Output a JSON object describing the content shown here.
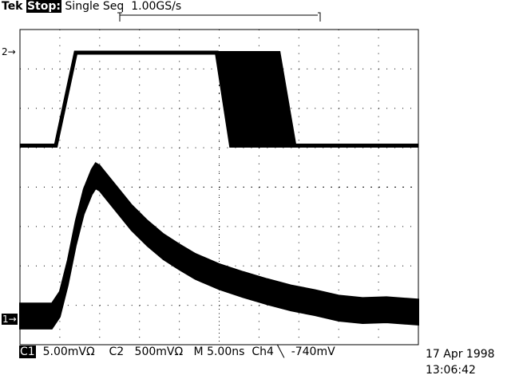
{
  "header": {
    "brand": "Tek",
    "state": "Stop:",
    "mode": "Single Seq",
    "sample_rate": "1.00GS/s"
  },
  "footer": {
    "ch1_label": "C1",
    "ch1_scale": "5.00mVΩ",
    "ch2_label": "C2",
    "ch2_scale": "500mVΩ",
    "timebase": "M 5.00ns",
    "trigger_source": "Ch4",
    "trigger_slope_icon": "falling-edge-icon",
    "trigger_level": "-740mV",
    "date": "17 Apr 1998",
    "time": "13:06:42"
  },
  "markers": {
    "ch1": "1→",
    "ch2": "2→"
  },
  "chart_data": {
    "type": "line",
    "grid": true,
    "divisions": {
      "x": 10,
      "y": 8
    },
    "x_unit": "ns",
    "xlim": [
      0,
      50
    ],
    "series": [
      {
        "name": "1",
        "unit": "mV",
        "per_div": 5,
        "band": 1.6,
        "x": [
          0,
          4,
          5,
          6,
          7,
          8,
          9,
          9.5,
          10,
          12,
          14,
          16,
          18,
          20,
          22,
          25,
          28,
          31,
          34,
          37,
          40,
          43,
          46,
          50
        ],
        "y": [
          0.5,
          0.5,
          2,
          6,
          11,
          15,
          17.5,
          18.3,
          18,
          15.5,
          13,
          11,
          9.3,
          8,
          6.8,
          5.5,
          4.5,
          3.6,
          2.8,
          2.2,
          1.5,
          1.2,
          1.3,
          1.0
        ]
      },
      {
        "name": "2",
        "unit": "V",
        "per_div": 0.5,
        "low": -1.18,
        "high": 0,
        "rise_start": 4.5,
        "rise_end": 7,
        "fall_earliest": [
          24.7,
          26.5
        ],
        "fall_latest": [
          32.5,
          34.5
        ]
      }
    ]
  }
}
